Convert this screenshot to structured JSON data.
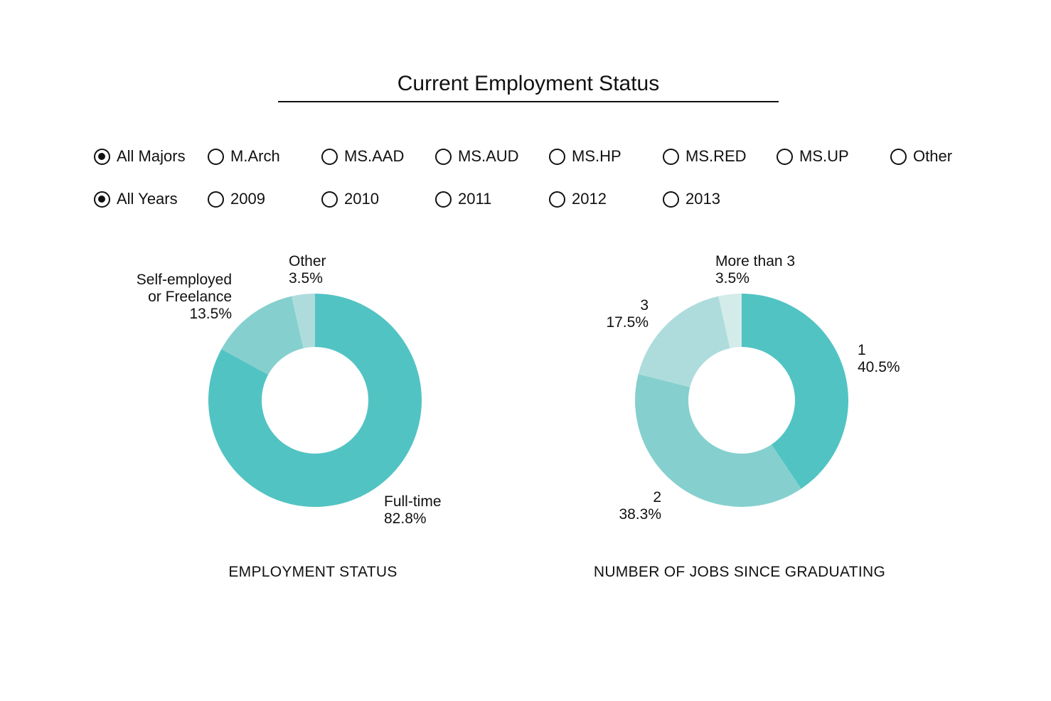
{
  "title": "Current Employment Status",
  "filters": {
    "majors": [
      {
        "label": "All Majors",
        "selected": true
      },
      {
        "label": "M.Arch",
        "selected": false
      },
      {
        "label": "MS.AAD",
        "selected": false
      },
      {
        "label": "MS.AUD",
        "selected": false
      },
      {
        "label": "MS.HP",
        "selected": false
      },
      {
        "label": "MS.RED",
        "selected": false
      },
      {
        "label": "MS.UP",
        "selected": false
      },
      {
        "label": "Other",
        "selected": false
      }
    ],
    "years": [
      {
        "label": "All Years",
        "selected": true
      },
      {
        "label": "2009",
        "selected": false
      },
      {
        "label": "2010",
        "selected": false
      },
      {
        "label": "2011",
        "selected": false
      },
      {
        "label": "2012",
        "selected": false
      },
      {
        "label": "2013",
        "selected": false
      }
    ]
  },
  "chart_data": [
    {
      "type": "pie",
      "donut": true,
      "title": "EMPLOYMENT STATUS",
      "slices": [
        {
          "label": [
            "Full-time"
          ],
          "value": 82.8,
          "pct_label": "82.8%",
          "color": "#52c3c3"
        },
        {
          "label": [
            "Self-employed",
            "or Freelance"
          ],
          "value": 13.5,
          "pct_label": "13.5%",
          "color": "#85d0ce"
        },
        {
          "label": [
            "Other"
          ],
          "value": 3.5,
          "pct_label": "3.5%",
          "color": "#aedcdc"
        }
      ]
    },
    {
      "type": "pie",
      "donut": true,
      "title": "NUMBER OF JOBS SINCE GRADUATING",
      "slices": [
        {
          "label": [
            "1"
          ],
          "value": 40.5,
          "pct_label": "40.5%",
          "color": "#52c3c3"
        },
        {
          "label": [
            "2"
          ],
          "value": 38.3,
          "pct_label": "38.3%",
          "color": "#85d0ce"
        },
        {
          "label": [
            "3"
          ],
          "value": 17.5,
          "pct_label": "17.5%",
          "color": "#aedcdc"
        },
        {
          "label": [
            "More than 3"
          ],
          "value": 3.5,
          "pct_label": "3.5%",
          "color": "#d3ecea"
        }
      ]
    }
  ]
}
